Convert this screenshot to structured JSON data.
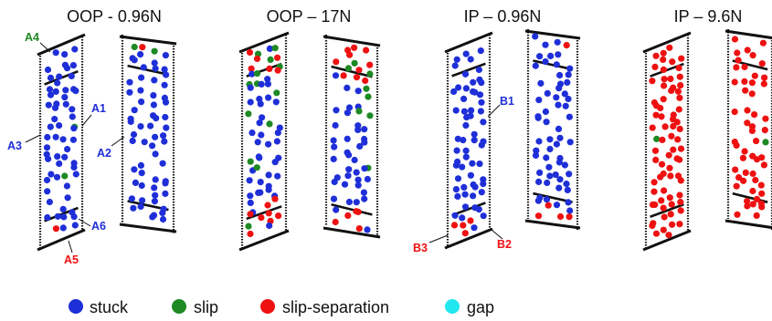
{
  "colors": {
    "stuck": "#1f2fd8",
    "slip": "#1d8a23",
    "slip_separation": "#ee1111",
    "gap": "#22e6f0",
    "outline": "#111111"
  },
  "panels": [
    {
      "title": "OOP - 0.96N",
      "callouts": [
        {
          "text": "A4",
          "state": "slip"
        },
        {
          "text": "A1",
          "state": "stuck"
        },
        {
          "text": "A3",
          "state": "stuck"
        },
        {
          "text": "A2",
          "state": "stuck"
        },
        {
          "text": "A6",
          "state": "stuck"
        },
        {
          "text": "A5",
          "state": "slip_separation"
        }
      ]
    },
    {
      "title": "OOP – 17N",
      "callouts": []
    },
    {
      "title": "IP – 0.96N",
      "callouts": [
        {
          "text": "B1",
          "state": "stuck"
        },
        {
          "text": "B3",
          "state": "slip_separation"
        },
        {
          "text": "B2",
          "state": "slip_separation"
        }
      ]
    },
    {
      "title": "IP – 9.6N",
      "callouts": []
    }
  ],
  "legend": [
    {
      "label": "stuck",
      "state": "stuck"
    },
    {
      "label": "slip",
      "state": "slip"
    },
    {
      "label": "slip-separation",
      "state": "slip_separation"
    },
    {
      "label": "gap",
      "state": "gap"
    }
  ]
}
